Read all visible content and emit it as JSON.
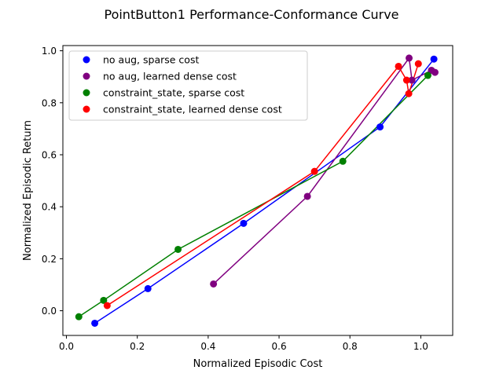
{
  "chart_data": {
    "type": "line",
    "title": "PointButton1 Performance-Conformance Curve",
    "xlabel": "Normalized Episodic Cost",
    "ylabel": "Normalized Episodic Return",
    "xlim": [
      -0.01,
      1.09
    ],
    "ylim": [
      -0.095,
      1.02
    ],
    "xticks": [
      "0.0",
      "0.2",
      "0.4",
      "0.6",
      "0.8",
      "1.0"
    ],
    "yticks": [
      "0.0",
      "0.2",
      "0.4",
      "0.6",
      "0.8",
      "1.0"
    ],
    "legend_position": "top-left",
    "series": [
      {
        "name": "no aug, sparse cost",
        "color": "#0000ff",
        "x": [
          0.08,
          0.23,
          0.5,
          0.885,
          1.037
        ],
        "y": [
          -0.048,
          0.085,
          0.336,
          0.707,
          0.968
        ]
      },
      {
        "name": "no aug, learned dense cost",
        "color": "#800080",
        "x": [
          0.415,
          0.68,
          0.967,
          0.975,
          1.03,
          1.04
        ],
        "y": [
          0.103,
          0.44,
          0.972,
          0.887,
          0.925,
          0.917
        ]
      },
      {
        "name": "constraint_state, sparse cost",
        "color": "#008000",
        "x": [
          0.035,
          0.105,
          0.315,
          0.78,
          1.02
        ],
        "y": [
          -0.023,
          0.04,
          0.236,
          0.575,
          0.905
        ]
      },
      {
        "name": "constraint_state, learned dense cost",
        "color": "#ff0000",
        "x": [
          0.115,
          0.7,
          0.937,
          0.96,
          0.966,
          0.993
        ],
        "y": [
          0.02,
          0.536,
          0.94,
          0.887,
          0.835,
          0.95
        ]
      }
    ]
  }
}
